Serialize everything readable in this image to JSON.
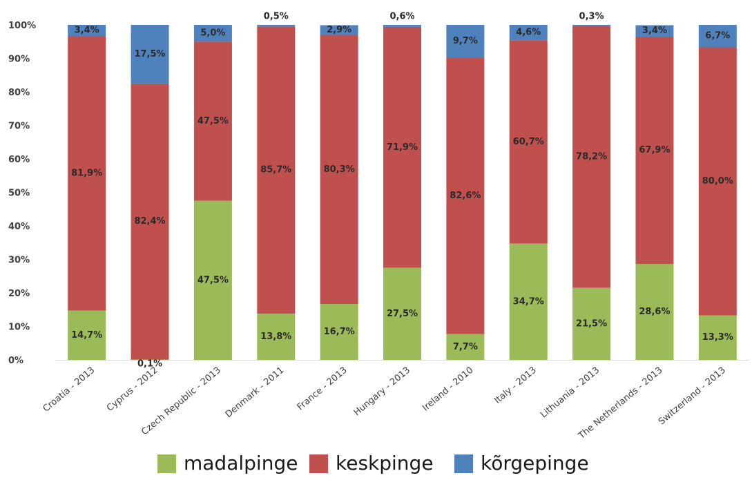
{
  "chart_data": {
    "type": "bar",
    "stacked": true,
    "percent_stacked": true,
    "title": "",
    "xlabel": "",
    "ylabel": "",
    "ylim": [
      0,
      100
    ],
    "y_ticks": [
      "0%",
      "10%",
      "20%",
      "30%",
      "40%",
      "50%",
      "60%",
      "70%",
      "80%",
      "90%",
      "100%"
    ],
    "grid": false,
    "legend_position": "bottom",
    "categories": [
      "Croatia - 2013",
      "Cyprus - 2012",
      "Czech Republic - 2013",
      "Denmark - 2011",
      "France - 2013",
      "Hungary - 2013",
      "Ireland - 2010",
      "Italy - 2013",
      "Lithuania - 2013",
      "The Netherlands - 2013",
      "Switzerland - 2013"
    ],
    "series": [
      {
        "name": "madalpinge",
        "color": "#9bbb59",
        "values": [
          14.7,
          0.1,
          47.5,
          13.8,
          16.7,
          27.5,
          7.7,
          34.7,
          21.5,
          28.6,
          13.3
        ],
        "labels": [
          "14,7%",
          "0,1%",
          "47,5%",
          "13,8%",
          "16,7%",
          "27,5%",
          "7,7%",
          "34,7%",
          "21,5%",
          "28,6%",
          "13,3%"
        ]
      },
      {
        "name": "keskpinge",
        "color": "#c0504d",
        "values": [
          81.9,
          82.4,
          47.5,
          85.7,
          80.3,
          71.9,
          82.6,
          60.7,
          78.2,
          67.9,
          80.0
        ],
        "labels": [
          "81,9%",
          "82,4%",
          "47,5%",
          "85,7%",
          "80,3%",
          "71,9%",
          "82,6%",
          "60,7%",
          "78,2%",
          "67,9%",
          "80,0%"
        ]
      },
      {
        "name": "kõrgepinge",
        "color": "#4f81bd",
        "values": [
          3.4,
          17.5,
          5.0,
          0.5,
          2.9,
          0.6,
          9.7,
          4.6,
          0.3,
          3.4,
          6.7
        ],
        "labels": [
          "3,4%",
          "17,5%",
          "5,0%",
          "0,5%",
          "2,9%",
          "0,6%",
          "9,7%",
          "4,6%",
          "0,3%",
          "3,4%",
          "6,7%"
        ]
      }
    ]
  }
}
